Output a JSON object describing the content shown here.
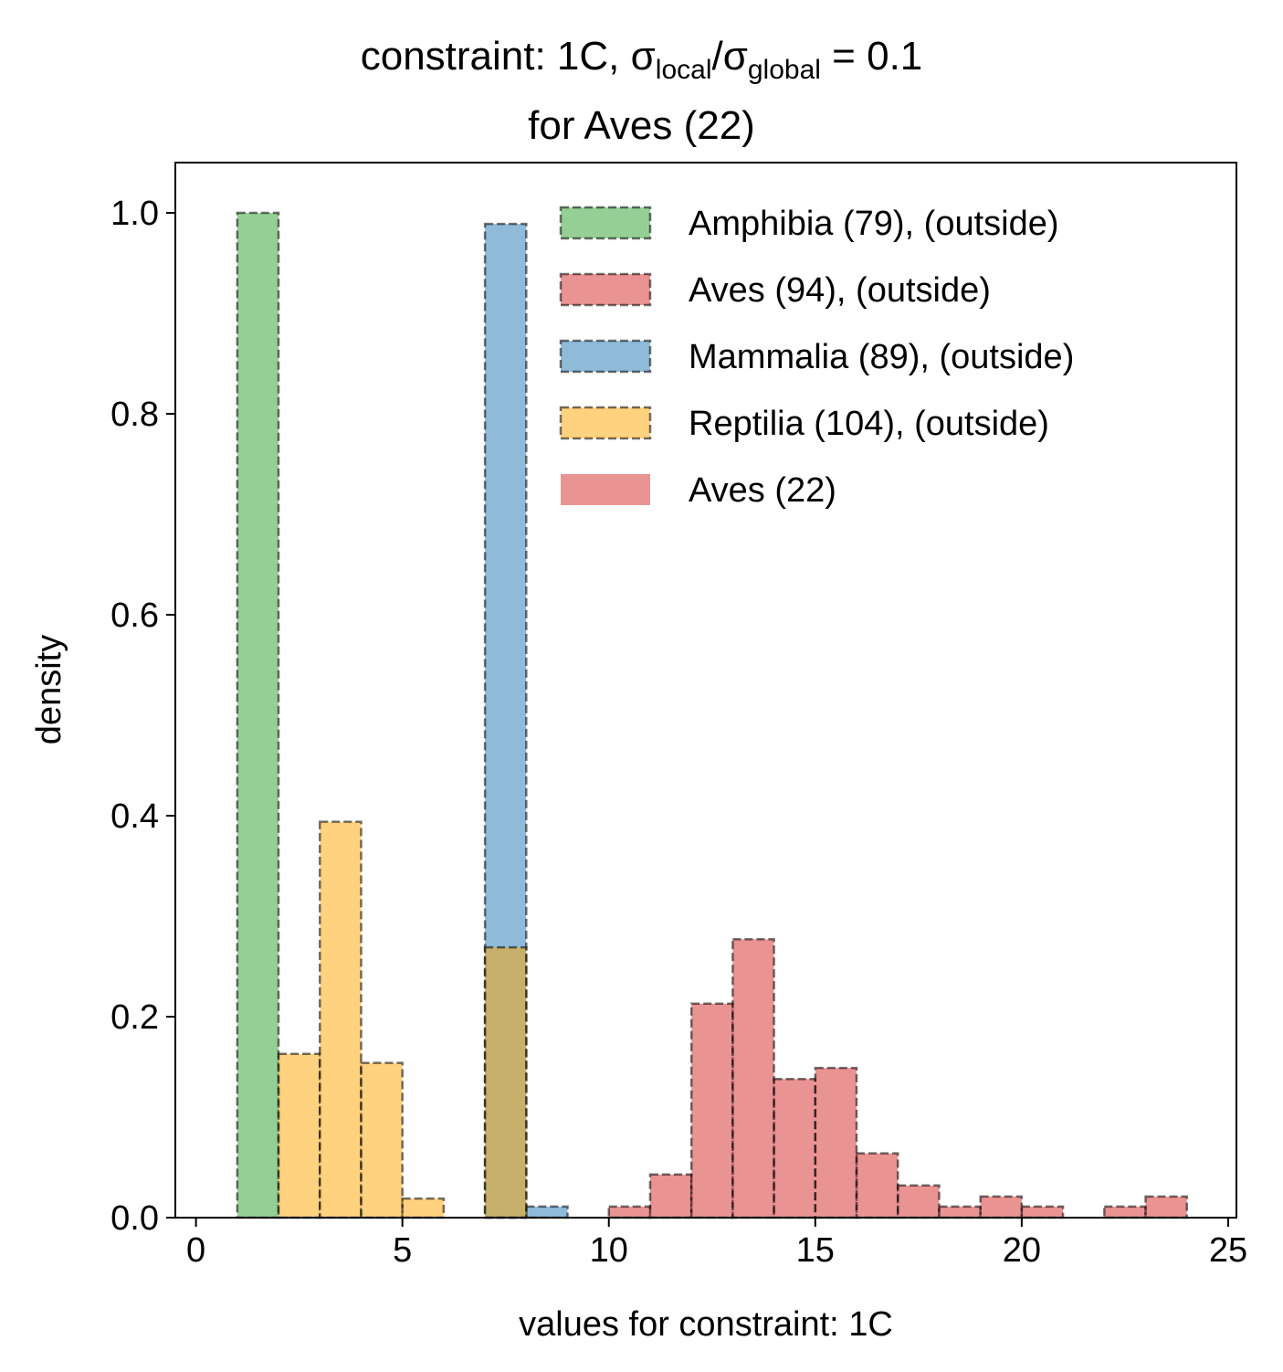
{
  "chart_data": {
    "type": "bar",
    "title": {
      "prefix": "constraint: 1C, σ",
      "sub1": "local",
      "mid": "/σ",
      "sub2": "global",
      "suffix": " =  0.1",
      "line2": "for Aves (22)"
    },
    "xlabel": "values for constraint: 1C",
    "ylabel": "density",
    "xlim": [
      -0.5,
      25.2
    ],
    "ylim": [
      0,
      1.05
    ],
    "xticks": [
      0,
      5,
      10,
      15,
      20,
      25
    ],
    "yticks": [
      0.0,
      0.2,
      0.4,
      0.6,
      0.8,
      1.0
    ],
    "xtick_labels": [
      "0",
      "5",
      "10",
      "15",
      "20",
      "25"
    ],
    "ytick_labels": [
      "0.0",
      "0.2",
      "0.4",
      "0.6",
      "0.8",
      "1.0"
    ],
    "grid": false,
    "legend_position": "top-right",
    "series": [
      {
        "name": "Amphibia (79), (outside)",
        "color": "#2ca02c",
        "style": "dashed",
        "bins": [
          [
            1,
            2,
            1.0
          ]
        ]
      },
      {
        "name": "Aves (94), (outside)",
        "color": "#d62728",
        "style": "dashed",
        "bins": [
          [
            10,
            11,
            0.011
          ],
          [
            11,
            12,
            0.043
          ],
          [
            12,
            13,
            0.213
          ],
          [
            13,
            14,
            0.277
          ],
          [
            14,
            15,
            0.138
          ],
          [
            15,
            16,
            0.149
          ],
          [
            16,
            17,
            0.064
          ],
          [
            17,
            18,
            0.032
          ],
          [
            18,
            19,
            0.011
          ],
          [
            19,
            20,
            0.021
          ],
          [
            20,
            21,
            0.011
          ],
          [
            22,
            23,
            0.011
          ],
          [
            23,
            24,
            0.021
          ]
        ]
      },
      {
        "name": "Mammalia (89), (outside)",
        "color": "#1f77b4",
        "style": "dashed",
        "bins": [
          [
            7,
            8,
            0.989
          ],
          [
            8,
            9,
            0.011
          ]
        ]
      },
      {
        "name": "Reptilia (104), (outside)",
        "color": "#ffa500",
        "style": "dashed",
        "bins": [
          [
            2,
            3,
            0.163
          ],
          [
            3,
            4,
            0.394
          ],
          [
            4,
            5,
            0.154
          ],
          [
            5,
            6,
            0.019
          ],
          [
            7,
            8,
            0.269
          ]
        ]
      },
      {
        "name": "Aves (22)",
        "color": "#d62728",
        "style": "solid",
        "bins": []
      }
    ]
  }
}
